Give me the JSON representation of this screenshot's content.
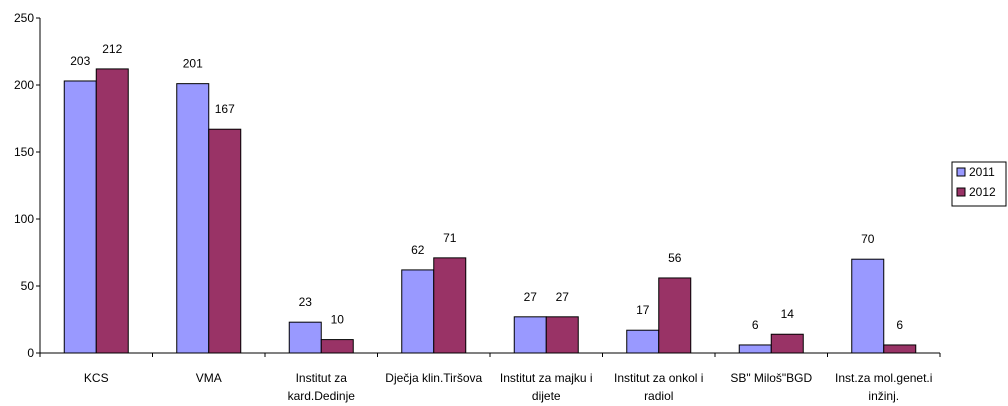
{
  "chart_data": {
    "type": "bar",
    "categories": [
      "KCS",
      "VMA",
      "Institut za\nkard.Dedinje",
      "Dječja klin.Tiršova",
      "Institut za majku i\ndijete",
      "Institut za onkol i\nradiol",
      "SB\" Miloš\"BGD",
      "Inst.za mol.genet.i\ninžinj."
    ],
    "series": [
      {
        "name": "2011",
        "color": "#9999ff",
        "values": [
          203,
          201,
          23,
          62,
          27,
          17,
          6,
          70
        ]
      },
      {
        "name": "2012",
        "color": "#993366",
        "values": [
          212,
          167,
          10,
          71,
          27,
          56,
          14,
          6
        ]
      }
    ],
    "ylim": [
      0,
      250
    ],
    "yticks": [
      0,
      50,
      100,
      150,
      200,
      250
    ],
    "legend": "right"
  }
}
